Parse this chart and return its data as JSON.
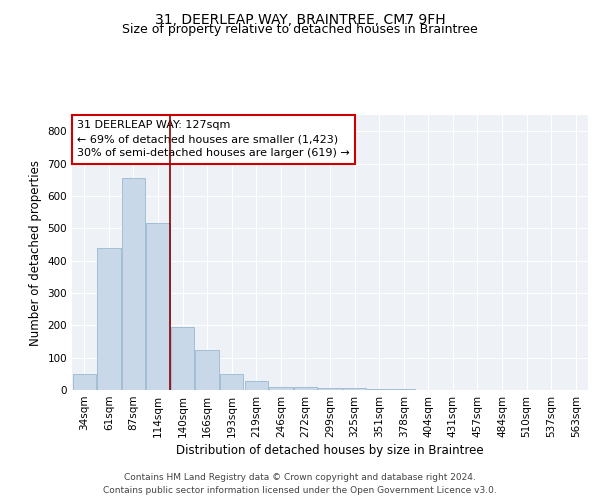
{
  "title_line1": "31, DEERLEAP WAY, BRAINTREE, CM7 9FH",
  "title_line2": "Size of property relative to detached houses in Braintree",
  "xlabel": "Distribution of detached houses by size in Braintree",
  "ylabel": "Number of detached properties",
  "bar_labels": [
    "34sqm",
    "61sqm",
    "87sqm",
    "114sqm",
    "140sqm",
    "166sqm",
    "193sqm",
    "219sqm",
    "246sqm",
    "272sqm",
    "299sqm",
    "325sqm",
    "351sqm",
    "378sqm",
    "404sqm",
    "431sqm",
    "457sqm",
    "484sqm",
    "510sqm",
    "537sqm",
    "563sqm"
  ],
  "bar_values": [
    50,
    440,
    655,
    515,
    195,
    125,
    50,
    27,
    10,
    8,
    5,
    5,
    3,
    2,
    1,
    1,
    1,
    1,
    1,
    1,
    1
  ],
  "bar_color": "#c8d8e8",
  "bar_edgecolor": "#8aafc8",
  "vline_x": 3.5,
  "vline_color": "#8b0000",
  "annotation_text": "31 DEERLEAP WAY: 127sqm\n← 69% of detached houses are smaller (1,423)\n30% of semi-detached houses are larger (619) →",
  "annotation_box_color": "#ffffff",
  "annotation_box_edgecolor": "#cc0000",
  "ylim": [
    0,
    850
  ],
  "yticks": [
    0,
    100,
    200,
    300,
    400,
    500,
    600,
    700,
    800
  ],
  "background_color": "#eef2f7",
  "grid_color": "#ffffff",
  "footer_line1": "Contains HM Land Registry data © Crown copyright and database right 2024.",
  "footer_line2": "Contains public sector information licensed under the Open Government Licence v3.0.",
  "title_fontsize": 10,
  "subtitle_fontsize": 9,
  "axis_label_fontsize": 8.5,
  "tick_fontsize": 7.5,
  "annotation_fontsize": 8,
  "footer_fontsize": 6.5
}
